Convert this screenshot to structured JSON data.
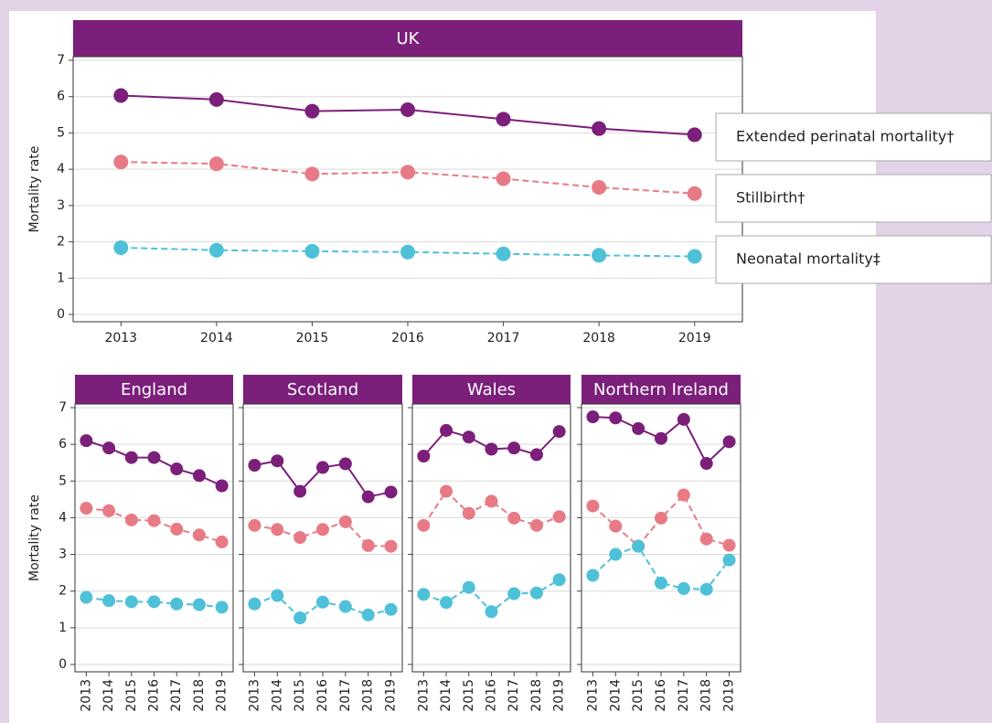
{
  "chart_data": [
    {
      "type": "line",
      "title": "UK",
      "y_label": "Mortality rate",
      "legend": "right",
      "categories": [
        "2013",
        "2014",
        "2015",
        "2016",
        "2017",
        "2018",
        "2019"
      ],
      "series": [
        {
          "name": "Extended perinatal mortality†",
          "color": "#7b1f7b",
          "line_style": "solid",
          "values": [
            6.03,
            5.92,
            5.6,
            5.64,
            5.38,
            5.12,
            4.95
          ]
        },
        {
          "name": "Stillbirth†",
          "color": "#e87a86",
          "line_style": "dashed",
          "values": [
            4.2,
            4.15,
            3.87,
            3.92,
            3.74,
            3.5,
            3.33
          ]
        },
        {
          "name": "Neonatal mortality‡",
          "color": "#4ec1d8",
          "line_style": "dashed",
          "values": [
            1.84,
            1.77,
            1.74,
            1.72,
            1.67,
            1.63,
            1.6
          ]
        }
      ],
      "ylim": [
        -0.2,
        7.1
      ],
      "yticks": [
        0,
        1,
        2,
        3,
        4,
        5,
        6,
        7
      ],
      "grid": true
    },
    {
      "type": "line",
      "title": "England",
      "y_label": "Mortality rate",
      "x_label_rotation": 90,
      "categories": [
        "2013",
        "2014",
        "2015",
        "2016",
        "2017",
        "2018",
        "2019"
      ],
      "series": [
        {
          "color": "#7b1f7b",
          "line_style": "solid",
          "values": [
            6.1,
            5.9,
            5.64,
            5.64,
            5.33,
            5.15,
            4.87
          ]
        },
        {
          "color": "#e87a86",
          "line_style": "dashed",
          "values": [
            4.26,
            4.19,
            3.94,
            3.92,
            3.69,
            3.53,
            3.34
          ]
        },
        {
          "color": "#4ec1d8",
          "line_style": "dashed",
          "values": [
            1.83,
            1.74,
            1.71,
            1.71,
            1.65,
            1.63,
            1.56
          ]
        }
      ],
      "ylim": [
        -0.2,
        7.1
      ],
      "yticks": [
        0,
        1,
        2,
        3,
        4,
        5,
        6,
        7
      ],
      "grid": true
    },
    {
      "type": "line",
      "title": "Scotland",
      "x_label_rotation": 90,
      "ytick_labels": false,
      "categories": [
        "2013",
        "2014",
        "2015",
        "2016",
        "2017",
        "2018",
        "2019"
      ],
      "series": [
        {
          "color": "#7b1f7b",
          "line_style": "solid",
          "values": [
            5.43,
            5.55,
            4.72,
            5.37,
            5.47,
            4.57,
            4.7
          ]
        },
        {
          "color": "#e87a86",
          "line_style": "dashed",
          "values": [
            3.79,
            3.68,
            3.46,
            3.68,
            3.89,
            3.24,
            3.22
          ]
        },
        {
          "color": "#4ec1d8",
          "line_style": "dashed",
          "values": [
            1.65,
            1.88,
            1.27,
            1.7,
            1.58,
            1.35,
            1.5
          ]
        }
      ],
      "ylim": [
        -0.2,
        7.1
      ],
      "yticks": [
        0,
        1,
        2,
        3,
        4,
        5,
        6,
        7
      ],
      "grid": true
    },
    {
      "type": "line",
      "title": "Wales",
      "x_label_rotation": 90,
      "ytick_labels": false,
      "categories": [
        "2013",
        "2014",
        "2015",
        "2016",
        "2017",
        "2018",
        "2019"
      ],
      "series": [
        {
          "color": "#7b1f7b",
          "line_style": "solid",
          "values": [
            5.68,
            6.38,
            6.2,
            5.87,
            5.9,
            5.72,
            6.35
          ]
        },
        {
          "color": "#e87a86",
          "line_style": "dashed",
          "values": [
            3.79,
            4.72,
            4.12,
            4.45,
            3.99,
            3.79,
            4.03
          ]
        },
        {
          "color": "#4ec1d8",
          "line_style": "dashed",
          "values": [
            1.91,
            1.69,
            2.1,
            1.44,
            1.93,
            1.95,
            2.31
          ]
        }
      ],
      "ylim": [
        -0.2,
        7.1
      ],
      "yticks": [
        0,
        1,
        2,
        3,
        4,
        5,
        6,
        7
      ],
      "grid": true
    },
    {
      "type": "line",
      "title": "Northern Ireland",
      "x_label_rotation": 90,
      "ytick_labels": false,
      "categories": [
        "2013",
        "2014",
        "2015",
        "2016",
        "2017",
        "2018",
        "2019"
      ],
      "series": [
        {
          "color": "#7b1f7b",
          "line_style": "solid",
          "values": [
            6.75,
            6.72,
            6.43,
            6.16,
            6.68,
            5.48,
            6.07
          ]
        },
        {
          "color": "#e87a86",
          "line_style": "dashed",
          "values": [
            4.32,
            3.77,
            3.23,
            3.99,
            4.62,
            3.42,
            3.25
          ]
        },
        {
          "color": "#4ec1d8",
          "line_style": "dashed",
          "values": [
            2.43,
            3.0,
            3.22,
            2.22,
            2.07,
            2.05,
            2.85
          ]
        }
      ],
      "ylim": [
        -0.2,
        7.1
      ],
      "yticks": [
        0,
        1,
        2,
        3,
        4,
        5,
        6,
        7
      ],
      "grid": true
    }
  ]
}
